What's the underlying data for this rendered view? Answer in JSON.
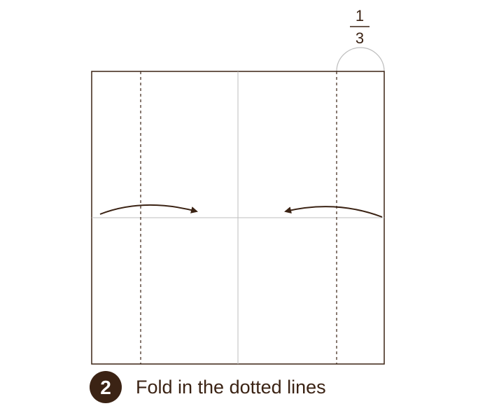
{
  "fraction": {
    "numerator": "1",
    "denominator": "3"
  },
  "step": {
    "number": "2",
    "instruction": "Fold in the dotted lines"
  },
  "colors": {
    "ink": "#3b2314",
    "crease": "#bdbdbd",
    "paper": "#ffffff"
  }
}
